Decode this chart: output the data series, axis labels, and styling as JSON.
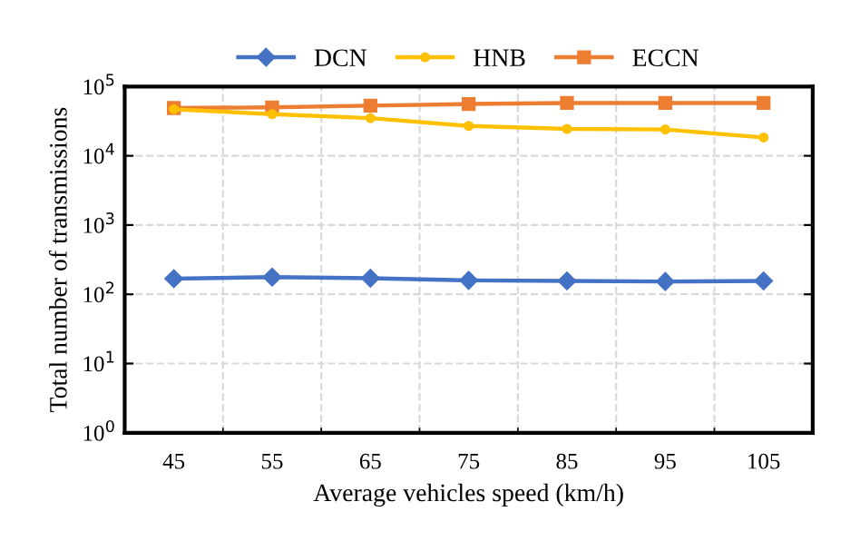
{
  "chart_data": {
    "type": "line",
    "xlabel": "Average vehicles speed (km/h)",
    "ylabel": "Total number of transmissions",
    "categories": [
      "45",
      "55",
      "65",
      "75",
      "85",
      "95",
      "105"
    ],
    "series": [
      {
        "name": "DCN",
        "color": "#4472c4",
        "marker": "diamond",
        "values": [
          168,
          177,
          171,
          159,
          156,
          153,
          156
        ]
      },
      {
        "name": "HNB",
        "color": "#ffc000",
        "marker": "circle",
        "values": [
          47000,
          40000,
          35000,
          27000,
          24500,
          24000,
          18400
        ]
      },
      {
        "name": "ECCN",
        "color": "#ed7d31",
        "marker": "square",
        "values": [
          49000,
          50000,
          53000,
          56000,
          58000,
          58000,
          58000
        ]
      }
    ],
    "log": "y",
    "ylim": [
      1,
      100000
    ],
    "yticks": [
      {
        "value": 1,
        "label": "10$^{0}$"
      },
      {
        "value": 10,
        "label": "10$^{1}$"
      },
      {
        "value": 100,
        "label": "10$^{2}$"
      },
      {
        "value": 1000,
        "label": "10$^{3}$"
      },
      {
        "value": 10000,
        "label": "10$^{4}$"
      },
      {
        "value": 100000,
        "label": "10$^{5}$"
      }
    ],
    "grid": true,
    "legend": "top",
    "line_style": "solid"
  }
}
